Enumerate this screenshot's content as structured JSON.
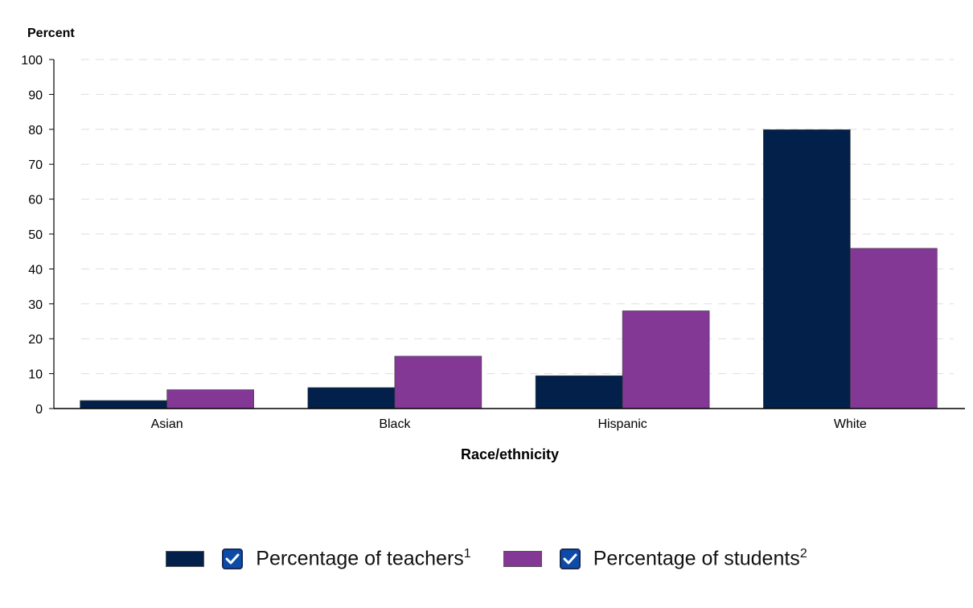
{
  "chart_data": {
    "type": "bar",
    "title": "",
    "xlabel": "Race/ethnicity",
    "ylabel": "Percent",
    "ylim": [
      0,
      100
    ],
    "yticks": [
      0,
      10,
      20,
      30,
      40,
      50,
      60,
      70,
      80,
      90,
      100
    ],
    "grid": true,
    "legend_position": "bottom",
    "categories": [
      "Asian",
      "Black",
      "Hispanic",
      "White"
    ],
    "series": [
      {
        "name": "Percentage of teachers",
        "footnote": "1",
        "color": "#03204a",
        "values": [
          2.3,
          6.0,
          9.4,
          79.9
        ]
      },
      {
        "name": "Percentage of students",
        "footnote": "2",
        "color": "#833895",
        "values": [
          5.4,
          15.0,
          28.0,
          45.9
        ]
      }
    ]
  },
  "colors": {
    "axis": "#000000",
    "grid": "#d9dde6",
    "checkbox_fill": "#0d4ba8"
  },
  "icons": {
    "checkbox": "check-icon"
  }
}
